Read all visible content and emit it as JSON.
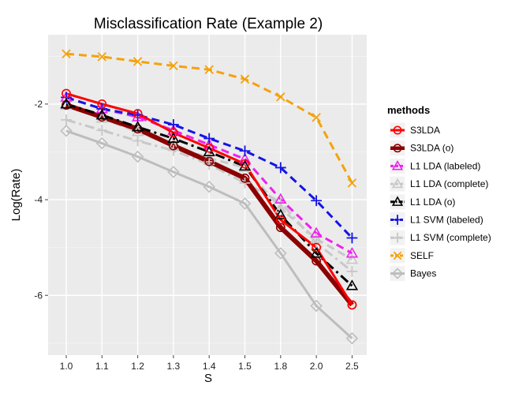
{
  "chart_data": {
    "type": "line",
    "title": "Misclassification Rate (Example 2)",
    "xlabel": "S",
    "ylabel": "Log(Rate)",
    "categories": [
      "1.0",
      "1.1",
      "1.2",
      "1.3",
      "1.4",
      "1.5",
      "1.8",
      "2.0",
      "2.5"
    ],
    "y_ticks": [
      -2,
      -4,
      -6
    ],
    "y_tick_labels": [
      "-2",
      "-4",
      "-6"
    ],
    "ylim": [
      -7.25,
      -0.55
    ],
    "grid": true,
    "legend": {
      "title": "methods",
      "position": "right"
    },
    "series": [
      {
        "name": "Bayes",
        "color": "#bdbdbd",
        "marker": "diamond",
        "dash": "solid",
        "width": 3,
        "values": [
          -2.56,
          -2.82,
          -3.1,
          -3.42,
          -3.73,
          -4.08,
          -5.12,
          -6.22,
          -6.9
        ]
      },
      {
        "name": "L1 SVM (complete)",
        "color": "#c8c8c8",
        "marker": "plus",
        "dash": "dashdot",
        "width": 3,
        "values": [
          -2.33,
          -2.55,
          -2.77,
          -2.97,
          -3.26,
          -3.65,
          -4.05,
          -4.9,
          -5.5
        ]
      },
      {
        "name": "L1 LDA (complete)",
        "color": "#c8c8c8",
        "marker": "triangle",
        "dash": "dashed",
        "width": 3,
        "values": [
          -2.03,
          -2.3,
          -2.58,
          -2.88,
          -3.13,
          -3.33,
          -4.18,
          -4.82,
          -5.25
        ]
      },
      {
        "name": "L1 LDA (labeled)",
        "color": "#ee22ee",
        "marker": "triangle",
        "dash": "dashed",
        "width": 3,
        "values": [
          -1.86,
          -2.1,
          -2.27,
          -2.55,
          -2.85,
          -3.15,
          -3.99,
          -4.7,
          -5.12
        ]
      },
      {
        "name": "SELF",
        "color": "#f4a20d",
        "marker": "x",
        "dash": "dashed",
        "width": 3,
        "values": [
          -0.95,
          -1.01,
          -1.11,
          -1.2,
          -1.28,
          -1.48,
          -1.85,
          -2.28,
          -3.65
        ]
      },
      {
        "name": "L1 SVM (labeled)",
        "color": "#1414e6",
        "marker": "plus",
        "dash": "dashed",
        "width": 3,
        "values": [
          -1.86,
          -2.1,
          -2.23,
          -2.43,
          -2.72,
          -2.98,
          -3.33,
          -4.02,
          -4.8
        ]
      },
      {
        "name": "S3LDA (o)",
        "color": "#8b0000",
        "marker": "circle",
        "dash": "solid",
        "width": 6,
        "values": [
          -2.02,
          -2.27,
          -2.52,
          -2.87,
          -3.2,
          -3.55,
          -4.58,
          -5.28,
          -6.2
        ]
      },
      {
        "name": "L1 LDA (o)",
        "color": "#000000",
        "marker": "triangle",
        "dash": "dashdot",
        "width": 3,
        "values": [
          -2.0,
          -2.23,
          -2.48,
          -2.72,
          -3.0,
          -3.3,
          -4.32,
          -5.12,
          -5.8
        ]
      },
      {
        "name": "S3LDA",
        "color": "#ff0000",
        "marker": "circle",
        "dash": "solid",
        "width": 3,
        "values": [
          -1.78,
          -2.0,
          -2.2,
          -2.6,
          -2.92,
          -3.25,
          -4.42,
          -5.0,
          -6.2
        ]
      }
    ],
    "legend_order": [
      "S3LDA",
      "S3LDA (o)",
      "L1 LDA (labeled)",
      "L1 LDA (complete)",
      "L1 LDA (o)",
      "L1 SVM (labeled)",
      "L1 SVM (complete)",
      "SELF",
      "Bayes"
    ]
  }
}
